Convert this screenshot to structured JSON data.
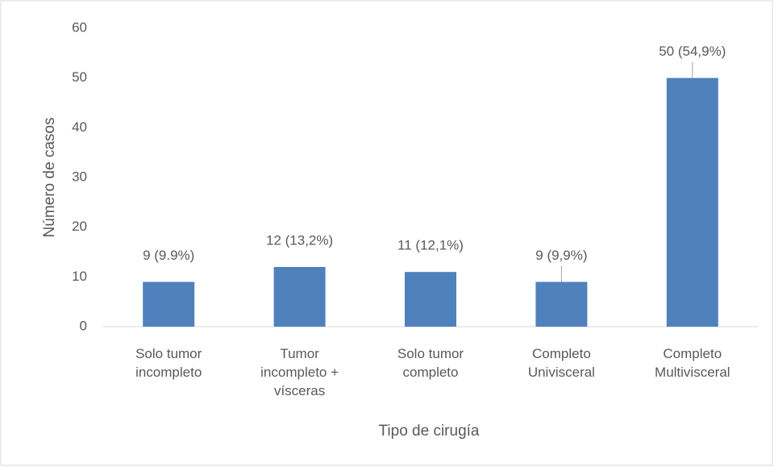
{
  "chart_data": {
    "type": "bar",
    "x_label": "Tipo de cirugía",
    "y_label": "Número de casos",
    "categories": [
      "Solo tumor incompleto",
      "Tumor incompleto + vísceras",
      "Solo tumor completo",
      "Completo Univisceral",
      "Completo Multivisceral"
    ],
    "values": [
      9,
      12,
      11,
      9,
      50
    ],
    "value_labels": [
      "9 (9.9%)",
      "12 (13,2%)",
      "11 (12,1%)",
      "9 (9,9%)",
      "50 (54,9%)"
    ],
    "color": "#4f81bd",
    "ylim": [
      0,
      60
    ],
    "yticks": [
      0,
      10,
      20,
      30,
      40,
      50,
      60
    ],
    "grid": false
  }
}
